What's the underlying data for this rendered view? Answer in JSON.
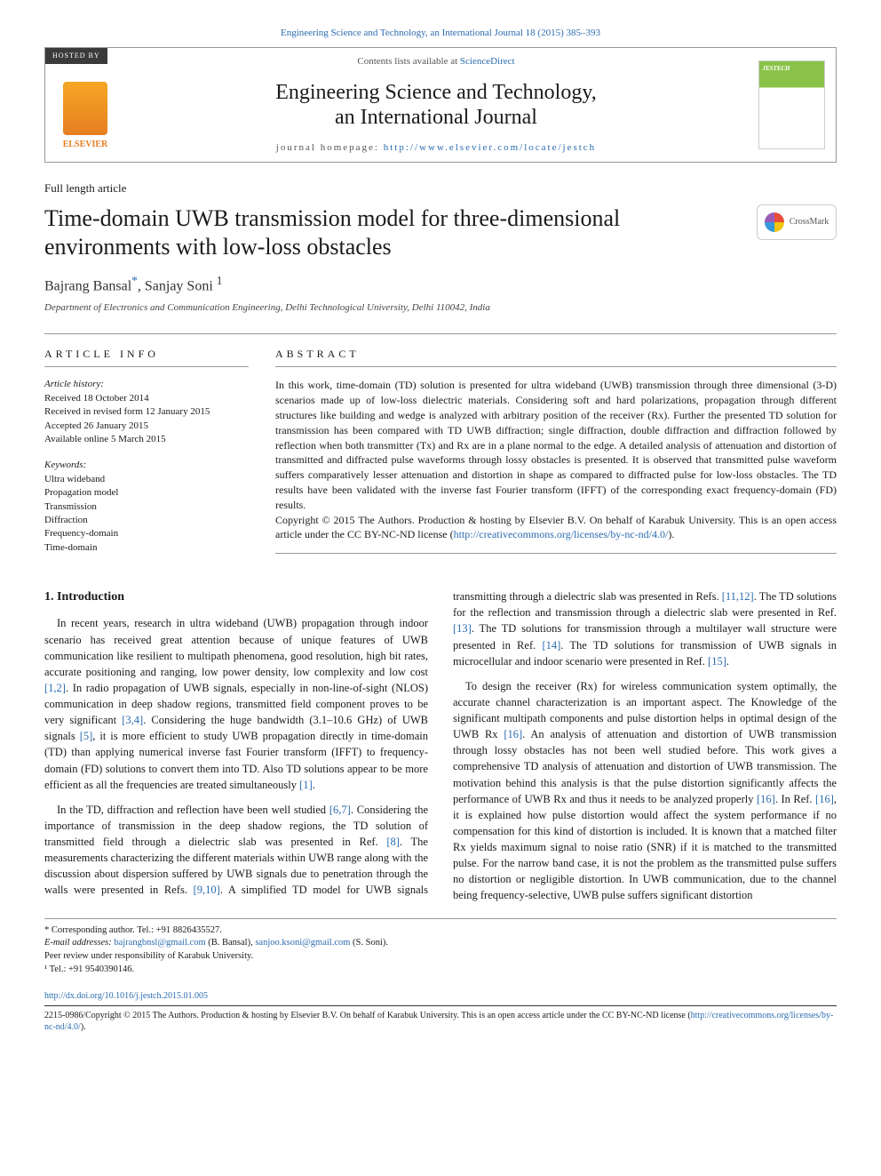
{
  "top_link": "Engineering Science and Technology, an International Journal 18 (2015) 385–393",
  "header": {
    "hosted_by": "HOSTED BY",
    "publisher_label": "ELSEVIER",
    "contents_line_prefix": "Contents lists available at ",
    "contents_line_link": "ScienceDirect",
    "journal_title_line1": "Engineering Science and Technology,",
    "journal_title_line2": "an International Journal",
    "homepage_prefix": "journal homepage: ",
    "homepage_link": "http://www.elsevier.com/locate/jestch",
    "cover_brand": "JESTECH"
  },
  "article_type": "Full length article",
  "title": "Time-domain UWB transmission model for three-dimensional environments with low-loss obstacles",
  "crossmark_label": "CrossMark",
  "authors": {
    "a1_name": "Bajrang Bansal",
    "a1_mark": "*",
    "sep": ", ",
    "a2_name": "Sanjay Soni ",
    "a2_mark": "1"
  },
  "affiliation": "Department of Electronics and Communication Engineering, Delhi Technological University, Delhi 110042, India",
  "info_label": "ARTICLE INFO",
  "abstract_label": "ABSTRACT",
  "history": {
    "label": "Article history:",
    "received": "Received 18 October 2014",
    "revised": "Received in revised form 12 January 2015",
    "accepted": "Accepted 26 January 2015",
    "online": "Available online 5 March 2015"
  },
  "keywords": {
    "label": "Keywords:",
    "k1": "Ultra wideband",
    "k2": "Propagation model",
    "k3": "Transmission",
    "k4": "Diffraction",
    "k5": "Frequency-domain",
    "k6": "Time-domain"
  },
  "abstract": {
    "p1": "In this work, time-domain (TD) solution is presented for ultra wideband (UWB) transmission through three dimensional (3-D) scenarios made up of low-loss dielectric materials. Considering soft and hard polarizations, propagation through different structures like building and wedge is analyzed with arbitrary position of the receiver (Rx). Further the presented TD solution for transmission has been compared with TD UWB diffraction; single diffraction, double diffraction and diffraction followed by reflection when both transmitter (Tx) and Rx are in a plane normal to the edge. A detailed analysis of attenuation and distortion of transmitted and diffracted pulse waveforms through lossy obstacles is presented. It is observed that transmitted pulse waveform suffers comparatively lesser attenuation and distortion in shape as compared to diffracted pulse for low-loss obstacles. The TD results have been validated with the inverse fast Fourier transform (IFFT) of the corresponding exact frequency-domain (FD) results.",
    "copyright": "Copyright © 2015 The Authors. Production & hosting by Elsevier B.V. On behalf of Karabuk University. This is an open access article under the CC BY-NC-ND license (",
    "license_link": "http://creativecommons.org/licenses/by-nc-nd/4.0/",
    "copyright_close": ")."
  },
  "body": {
    "h_intro": "1. Introduction",
    "p1_a": "In recent years, research in ultra wideband (UWB) propagation through indoor scenario has received great attention because of unique features of UWB communication like resilient to multipath phenomena, good resolution, high bit rates, accurate positioning and ranging, low power density, low complexity and low cost ",
    "ref12": "[1,2]",
    "p1_b": ". In radio propagation of UWB signals, especially in non-line-of-sight (NLOS) communication in deep shadow regions, transmitted field component proves to be very significant ",
    "ref34": "[3,4]",
    "p1_c": ". Considering the huge bandwidth (3.1–10.6 GHz) of UWB signals ",
    "ref5": "[5]",
    "p1_d": ", it is more efficient to study UWB propagation directly in time-domain (TD) than applying numerical inverse fast Fourier transform (IFFT) to frequency-domain (FD) solutions to convert them into TD. Also TD solutions appear to be more efficient as all the frequencies are treated simultaneously ",
    "ref1": "[1]",
    "p1_e": ".",
    "p2_a": "In the TD, diffraction and reflection have been well studied ",
    "ref67": "[6,7]",
    "p2_b": ". Considering the importance of transmission in the deep shadow regions, the TD solution of transmitted field through a dielectric slab was presented in Ref. ",
    "ref8": "[8]",
    "p2_c": ". The measurements characterizing the different materials within UWB range along with the discussion about dispersion suffered by UWB signals due to penetration through the walls were presented in Refs. ",
    "ref910": "[9,10]",
    "p2_d": ". A simplified TD model for UWB signals transmitting through a dielectric slab was presented in Refs. ",
    "ref1112": "[11,12]",
    "p2_e": ". The TD solutions for the reflection and transmission through a dielectric slab were presented in Ref. ",
    "ref13": "[13]",
    "p2_f": ". The TD solutions for transmission through a multilayer wall structure were presented in Ref. ",
    "ref14": "[14]",
    "p2_g": ". The TD solutions for transmission of UWB signals in microcellular and indoor scenario were presented in Ref. ",
    "ref15": "[15]",
    "p2_h": ".",
    "p3_a": "To design the receiver (Rx) for wireless communication system optimally, the accurate channel characterization is an important aspect. The Knowledge of the significant multipath components and pulse distortion helps in optimal design of the UWB Rx ",
    "ref16a": "[16]",
    "p3_b": ". An analysis of attenuation and distortion of UWB transmission through lossy obstacles has not been well studied before. This work gives a comprehensive TD analysis of attenuation and distortion of UWB transmission. The motivation behind this analysis is that the pulse distortion significantly affects the performance of UWB Rx and thus it needs to be analyzed properly ",
    "ref16b": "[16]",
    "p3_c": ". In Ref. ",
    "ref16c": "[16]",
    "p3_d": ", it is explained how pulse distortion would affect the system performance if no compensation for this kind of distortion is included. It is known that a matched filter Rx yields maximum signal to noise ratio (SNR) if it is matched to the transmitted pulse. For the narrow band case, it is not the problem as the transmitted pulse suffers no distortion or negligible distortion. In UWB communication, due to the channel being frequency-selective, UWB pulse suffers significant distortion"
  },
  "footnotes": {
    "corr": "* Corresponding author. Tel.: +91 8826435527.",
    "email_label": "E-mail addresses: ",
    "email1": "bajrangbnsl@gmail.com",
    "email1_who": " (B. Bansal), ",
    "email2": "sanjoo.ksoni@gmail.com",
    "email2_who": " (S. Soni).",
    "peer": "Peer review under responsibility of Karabuk University.",
    "tel1": "¹ Tel.: +91 9540390146."
  },
  "footer": {
    "doi": "http://dx.doi.org/10.1016/j.jestch.2015.01.005",
    "issn_line_a": "2215-0986/Copyright © 2015 The Authors. Production & hosting by Elsevier B.V. On behalf of Karabuk University. This is an open access article under the CC BY-NC-ND license (",
    "license_link": "http://creativecommons.org/licenses/by-nc-nd/4.0/",
    "issn_line_b": ")."
  },
  "colors": {
    "link": "#2b6cb0",
    "text": "#1a1a1a",
    "rule": "#999999",
    "elsevier": "#e67e22",
    "hosted_bg": "#3a3a3a"
  }
}
